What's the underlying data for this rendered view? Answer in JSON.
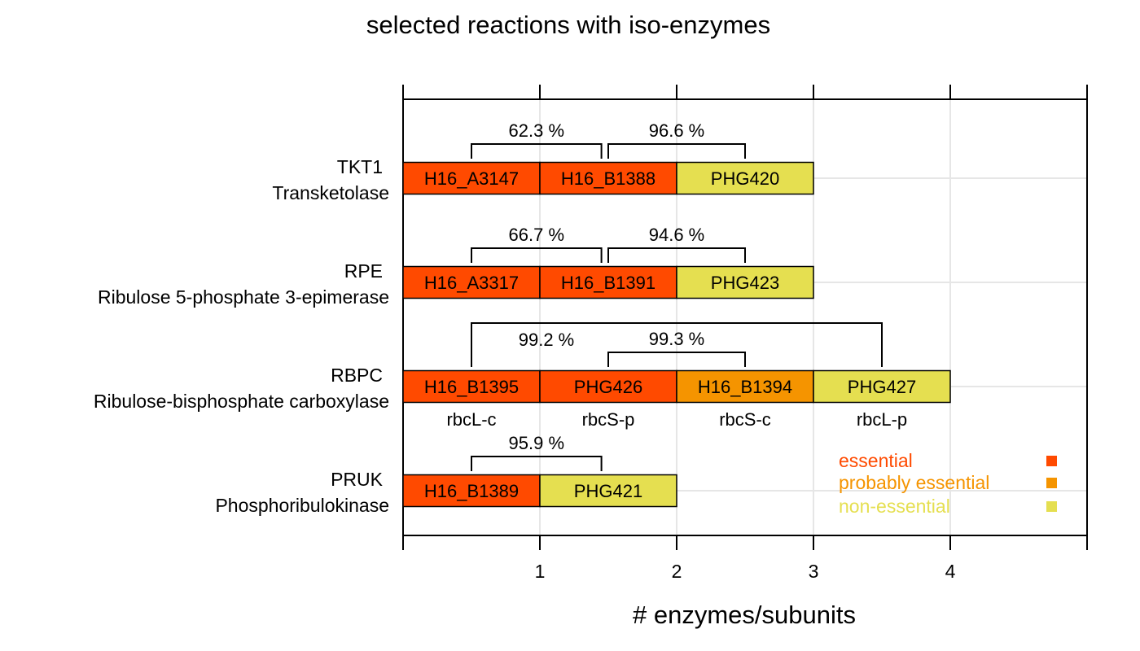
{
  "chart_data": {
    "type": "bar",
    "orientation": "horizontal",
    "stacked": true,
    "title": "selected reactions with iso-enzymes",
    "xlabel": "# enzymes/subunits",
    "ylabel": "",
    "xlim": [
      0,
      5
    ],
    "xticks": [
      1,
      2,
      3,
      4
    ],
    "tick_labels": [
      "1",
      "2",
      "3",
      "4"
    ],
    "grid": true,
    "legend_position": "bottom-right",
    "colors": {
      "essential": "#FF4A00",
      "probably essential": "#F59400",
      "non-essential": "#E5DF50"
    },
    "legend": [
      {
        "label": "essential",
        "color": "#FF4A00"
      },
      {
        "label": "probably essential",
        "color": "#F59400"
      },
      {
        "label": "non-essential",
        "color": "#E5DF50"
      }
    ],
    "reactions": [
      {
        "id": "TKT1",
        "name": "Transketolase",
        "segments": [
          {
            "label": "H16_A3147",
            "class": "essential",
            "value": 1
          },
          {
            "label": "H16_B1388",
            "class": "essential",
            "value": 1
          },
          {
            "label": "PHG420",
            "class": "non-essential",
            "value": 1
          }
        ],
        "subunits": [],
        "identities": [
          {
            "from": 0.5,
            "to": 1.45,
            "label": "62.3 %"
          },
          {
            "from": 1.5,
            "to": 2.5,
            "label": "96.6 %"
          }
        ]
      },
      {
        "id": "RPE",
        "name": "Ribulose 5-phosphate 3-epimerase",
        "segments": [
          {
            "label": "H16_A3317",
            "class": "essential",
            "value": 1
          },
          {
            "label": "H16_B1391",
            "class": "essential",
            "value": 1
          },
          {
            "label": "PHG423",
            "class": "non-essential",
            "value": 1
          }
        ],
        "subunits": [],
        "identities": [
          {
            "from": 0.5,
            "to": 1.45,
            "label": "66.7 %"
          },
          {
            "from": 1.5,
            "to": 2.5,
            "label": "94.6 %"
          }
        ]
      },
      {
        "id": "RBPC",
        "name": "Ribulose-bisphosphate carboxylase",
        "segments": [
          {
            "label": "H16_B1395",
            "class": "essential",
            "value": 1
          },
          {
            "label": "PHG426",
            "class": "essential",
            "value": 1
          },
          {
            "label": "H16_B1394",
            "class": "probably essential",
            "value": 1
          },
          {
            "label": "PHG427",
            "class": "non-essential",
            "value": 1
          }
        ],
        "subunits": [
          "rbcL-c",
          "rbcS-p",
          "rbcS-c",
          "rbcL-p"
        ],
        "identities": [
          {
            "from": 0.5,
            "to": 3.5,
            "label": "99.2 %",
            "tall": true
          },
          {
            "from": 1.5,
            "to": 2.5,
            "label": "99.3 %"
          }
        ]
      },
      {
        "id": "PRUK",
        "name": "Phosphoribulokinase",
        "segments": [
          {
            "label": "H16_B1389",
            "class": "essential",
            "value": 1
          },
          {
            "label": "PHG421",
            "class": "non-essential",
            "value": 1
          }
        ],
        "subunits": [],
        "identities": [
          {
            "from": 0.5,
            "to": 1.45,
            "label": "95.9 %"
          }
        ]
      }
    ]
  }
}
